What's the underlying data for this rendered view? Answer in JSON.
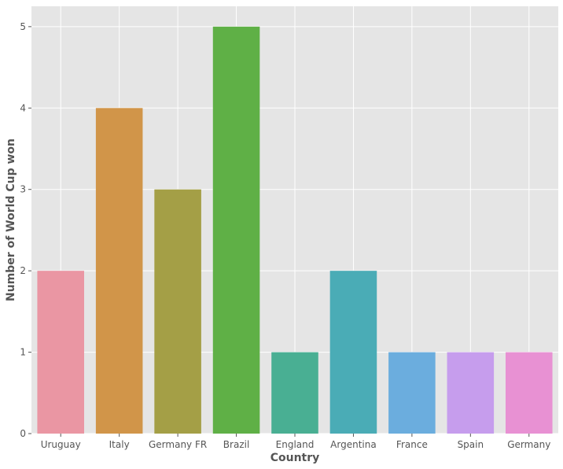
{
  "chart_data": {
    "type": "bar",
    "title": "",
    "xlabel": "Country",
    "ylabel": "Number of World Cup won",
    "categories": [
      "Uruguay",
      "Italy",
      "Germany FR",
      "Brazil",
      "England",
      "Argentina",
      "France",
      "Spain",
      "Germany"
    ],
    "values": [
      2,
      4,
      3,
      5,
      1,
      2,
      1,
      1,
      1
    ],
    "colors": [
      "#ea96a3",
      "#d19549",
      "#a49f46",
      "#5fb046",
      "#49af93",
      "#4aacb6",
      "#6badde",
      "#c69ded",
      "#e891d3"
    ],
    "ylim": [
      0,
      5.25
    ],
    "yticks": [
      0,
      1,
      2,
      3,
      4,
      5
    ],
    "grid": true,
    "background": "#e5e5e5",
    "grid_color": "#ffffff"
  }
}
